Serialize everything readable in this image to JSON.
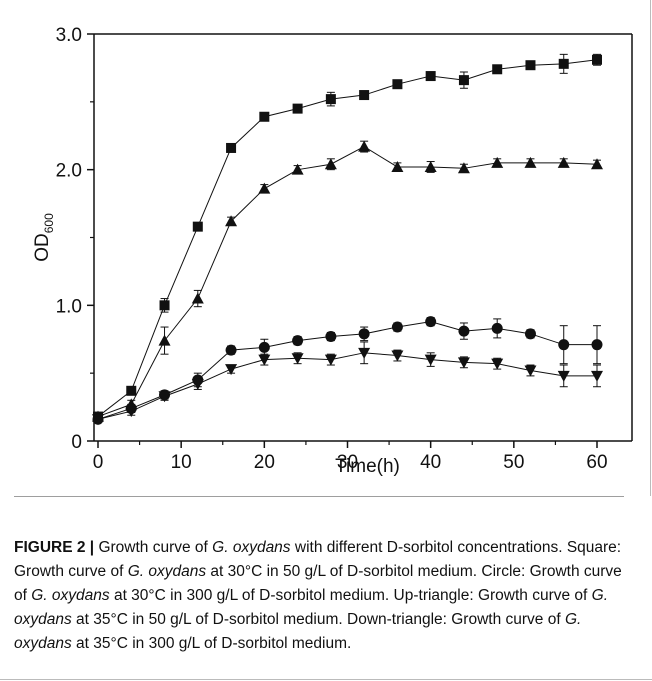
{
  "chart_data": {
    "type": "line",
    "xlabel": "Time(h)",
    "ylabel_main": "OD",
    "ylabel_sub": "600",
    "xlim": [
      0,
      60
    ],
    "ylim": [
      0,
      3.0
    ],
    "x_ticks": [
      0,
      10,
      20,
      30,
      40,
      50,
      60
    ],
    "x_tick_labels": [
      "0",
      "10",
      "20",
      "30",
      "40",
      "50",
      "60"
    ],
    "y_ticks": [
      0,
      1.0,
      2.0,
      3.0
    ],
    "y_tick_labels": [
      "0",
      "1.0",
      "2.0",
      "3.0"
    ],
    "grid": false,
    "legend": "none",
    "x": [
      0,
      4,
      8,
      12,
      16,
      20,
      24,
      28,
      32,
      36,
      40,
      44,
      48,
      52,
      56,
      60
    ],
    "series": [
      {
        "marker": "square",
        "values": [
          0.18,
          0.37,
          1.0,
          1.58,
          2.16,
          2.39,
          2.45,
          2.52,
          2.55,
          2.63,
          2.69,
          2.66,
          2.74,
          2.77,
          2.78,
          2.81
        ],
        "errors": [
          0.02,
          0.03,
          0.05,
          0.03,
          0.02,
          0.02,
          0.03,
          0.05,
          0.03,
          0.03,
          0.03,
          0.06,
          0.03,
          0.03,
          0.07,
          0.04
        ]
      },
      {
        "marker": "triangle-up",
        "values": [
          0.18,
          0.27,
          0.74,
          1.05,
          1.62,
          1.86,
          2.0,
          2.04,
          2.17,
          2.02,
          2.02,
          2.01,
          2.05,
          2.05,
          2.05,
          2.04
        ],
        "errors": [
          0.02,
          0.03,
          0.1,
          0.06,
          0.03,
          0.03,
          0.03,
          0.04,
          0.04,
          0.03,
          0.04,
          0.03,
          0.03,
          0.03,
          0.03,
          0.03
        ]
      },
      {
        "marker": "circle",
        "values": [
          0.16,
          0.24,
          0.34,
          0.45,
          0.67,
          0.69,
          0.74,
          0.77,
          0.79,
          0.84,
          0.88,
          0.81,
          0.83,
          0.79,
          0.71,
          0.71
        ],
        "errors": [
          0.02,
          0.03,
          0.03,
          0.05,
          0.03,
          0.06,
          0.03,
          0.03,
          0.05,
          0.03,
          0.03,
          0.06,
          0.07,
          0.03,
          0.14,
          0.14
        ]
      },
      {
        "marker": "triangle-down",
        "values": [
          0.16,
          0.22,
          0.33,
          0.42,
          0.53,
          0.6,
          0.61,
          0.6,
          0.65,
          0.63,
          0.6,
          0.58,
          0.57,
          0.52,
          0.48,
          0.48
        ],
        "errors": [
          0.02,
          0.03,
          0.03,
          0.04,
          0.03,
          0.04,
          0.04,
          0.04,
          0.08,
          0.04,
          0.05,
          0.04,
          0.04,
          0.04,
          0.08,
          0.08
        ]
      }
    ]
  },
  "caption": {
    "label": "FIGURE 2 |",
    "text": [
      {
        "t": " Growth curve of "
      },
      {
        "t": "G. oxydans",
        "i": true
      },
      {
        "t": " with different D-sorbitol concentrations. Square: Growth curve of "
      },
      {
        "t": "G. oxydans",
        "i": true
      },
      {
        "t": " at 30°C in 50 g/L of D-sorbitol medium. Circle: Growth curve of "
      },
      {
        "t": "G. oxydans",
        "i": true
      },
      {
        "t": " at 30°C in 300 g/L of D-sorbitol medium. Up-triangle: Growth curve of "
      },
      {
        "t": "G. oxydans",
        "i": true
      },
      {
        "t": " at 35°C in 50 g/L of D-sorbitol medium. Down-triangle: Growth curve of "
      },
      {
        "t": "G. oxydans",
        "i": true
      },
      {
        "t": " at 35°C in 300 g/L of D-sorbitol medium."
      }
    ]
  }
}
